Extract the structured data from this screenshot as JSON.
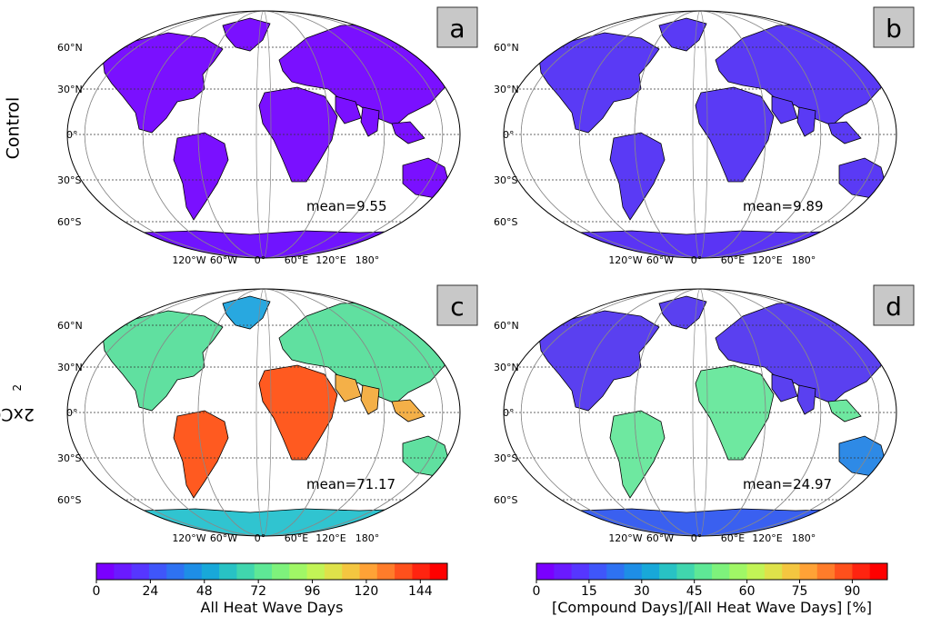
{
  "row_labels": [
    "Control",
    "2xCO"
  ],
  "row_label_sub": "2",
  "panels": [
    {
      "letter": "a",
      "mean_text": "mean=9.55",
      "colorbar": 0
    },
    {
      "letter": "b",
      "mean_text": "mean=9.89",
      "colorbar": 1
    },
    {
      "letter": "c",
      "mean_text": "mean=71.17",
      "colorbar": 0
    },
    {
      "letter": "d",
      "mean_text": "mean=24.97",
      "colorbar": 1
    }
  ],
  "lat_labels": [
    "60°N",
    "30°N",
    "0°",
    "30°S",
    "60°S"
  ],
  "lon_labels": [
    "120°W",
    "60°W",
    "0°",
    "60°E",
    "120°E",
    "180°"
  ],
  "colorbars": [
    {
      "label": "All Heat Wave Days",
      "ticks": [
        "0",
        "24",
        "48",
        "72",
        "96",
        "120",
        "144"
      ],
      "min": 0,
      "max": 156
    },
    {
      "label": "[Compound Days]/[All Heat Wave Days] [%]",
      "ticks": [
        "0",
        "15",
        "30",
        "45",
        "60",
        "75",
        "90"
      ],
      "min": 0,
      "max": 100
    }
  ],
  "colormap": [
    "#7a00ff",
    "#6a1aff",
    "#5636ff",
    "#3f56fa",
    "#2e72f2",
    "#1e8ee6",
    "#18a8d9",
    "#28c2c4",
    "#40d6ae",
    "#5ee896",
    "#7ef27c",
    "#a0f766",
    "#c2f456",
    "#dee24a",
    "#f4c640",
    "#ffa236",
    "#ff7c2a",
    "#ff501c",
    "#ff2410",
    "#ff0000"
  ],
  "map_colors": {
    "control_a": "#7a10ff",
    "control_b": "#5a3af5",
    "c_cold": "#28a8e0",
    "c_mid": "#60e0a0",
    "c_warm": "#f4b048",
    "c_hot": "#ff5a20",
    "d_low": "#5a40f0",
    "d_mid": "#2e8ae6",
    "d_high": "#6ee8a0",
    "antarctica_a": "#7014ff",
    "antarctica_b": "#5a34f5",
    "antarctica_c": "#30c4d0",
    "antarctica_d": "#3a60f0"
  }
}
